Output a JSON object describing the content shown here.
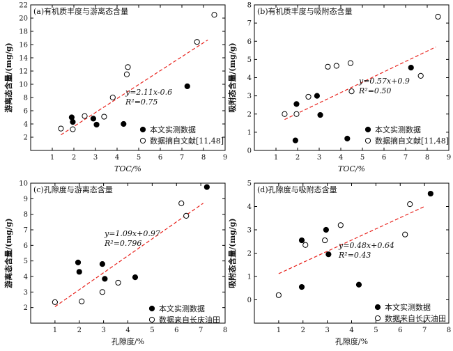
{
  "chart_data": [
    {
      "type": "scatter",
      "title": "(a)有机质丰度与游离态含量",
      "xlabel": "TOC/%",
      "ylabel": "游离态含量/(mg/g)",
      "xlim": [
        0,
        9
      ],
      "ylim": [
        0,
        22
      ],
      "xticks": [
        1,
        2,
        3,
        4,
        5,
        6,
        7,
        8,
        9
      ],
      "yticks": [
        2,
        4,
        6,
        8,
        10,
        12,
        14,
        16,
        18,
        20,
        22
      ],
      "series": [
        {
          "name": "本文实测数据",
          "marker": "filled",
          "x": [
            1.9,
            1.95,
            2.9,
            3.05,
            4.3,
            7.25
          ],
          "y": [
            5.0,
            4.3,
            4.8,
            3.9,
            4.0,
            9.7
          ]
        },
        {
          "name": "数据摘自文献[11,48]",
          "marker": "open",
          "x": [
            1.4,
            1.95,
            2.5,
            3.4,
            3.8,
            4.45,
            4.5,
            7.7,
            8.5
          ],
          "y": [
            3.3,
            3.2,
            5.2,
            5.1,
            8.0,
            11.5,
            12.6,
            16.4,
            20.5
          ]
        }
      ],
      "fit": {
        "slope": 2.11,
        "intercept": -0.6,
        "x_range": [
          1.4,
          8.2
        ]
      },
      "annotations": [
        "y=2.11x-0.6",
        "R²=0.75"
      ],
      "legend_position": "bottom-right"
    },
    {
      "type": "scatter",
      "title": "(b)有机质丰度与吸附态含量",
      "xlabel": "TOC/%",
      "ylabel": "吸附态含量/(mg/g)",
      "xlim": [
        0,
        9
      ],
      "ylim": [
        0,
        8
      ],
      "xticks": [
        1,
        2,
        3,
        4,
        5,
        6,
        7,
        8,
        9
      ],
      "yticks": [
        0,
        1,
        2,
        3,
        4,
        5,
        6,
        7,
        8
      ],
      "series": [
        {
          "name": "本文实测数据",
          "marker": "filled",
          "x": [
            1.9,
            1.95,
            2.9,
            3.05,
            4.3,
            7.25
          ],
          "y": [
            0.55,
            2.55,
            3.0,
            1.95,
            0.65,
            4.55
          ]
        },
        {
          "name": "数据摘自文献[11,48]",
          "marker": "open",
          "x": [
            1.4,
            1.95,
            2.5,
            3.4,
            3.8,
            4.45,
            4.5,
            7.7,
            8.5
          ],
          "y": [
            2.0,
            2.0,
            2.95,
            4.6,
            4.65,
            4.8,
            3.25,
            4.1,
            7.35
          ]
        }
      ],
      "fit": {
        "slope": 0.57,
        "intercept": 0.9,
        "x_range": [
          1.4,
          8.4
        ]
      },
      "annotations": [
        "y=0.57x+0.9",
        "R²=0.50"
      ],
      "legend_position": "bottom-right"
    },
    {
      "type": "scatter",
      "title": "(c)孔隙度与游离态含量",
      "xlabel": "孔隙度/%",
      "ylabel": "游离态含量/(mg/g)",
      "xlim": [
        0,
        8
      ],
      "ylim": [
        1,
        10
      ],
      "xticks": [
        1,
        2,
        3,
        4,
        5,
        6,
        7,
        8
      ],
      "yticks": [
        2,
        3,
        4,
        5,
        6,
        7,
        8,
        9,
        10
      ],
      "series": [
        {
          "name": "本文实测数据",
          "marker": "filled",
          "x": [
            1.95,
            2.0,
            2.95,
            3.05,
            4.3,
            7.25
          ],
          "y": [
            4.9,
            4.3,
            4.8,
            3.85,
            3.95,
            9.75
          ]
        },
        {
          "name": "数据来自长庆油田",
          "marker": "open",
          "x": [
            1.0,
            2.1,
            2.95,
            3.6,
            6.2,
            6.4
          ],
          "y": [
            2.35,
            2.4,
            3.0,
            3.6,
            8.7,
            7.9
          ]
        }
      ],
      "fit": {
        "slope": 1.09,
        "intercept": 0.97,
        "x_range": [
          1.0,
          7.1
        ]
      },
      "annotations": [
        "y=1.09x+0.97",
        "R²=0.796"
      ],
      "legend_position": "bottom-right"
    },
    {
      "type": "scatter",
      "title": "(d)孔隙度与吸附态含量",
      "xlabel": "孔隙度/%",
      "ylabel": "吸附态含量/(mg/g)",
      "xlim": [
        0,
        8
      ],
      "ylim": [
        -1,
        5
      ],
      "xticks": [
        1,
        2,
        3,
        4,
        5,
        6,
        7,
        8
      ],
      "yticks": [
        0,
        1,
        2,
        3,
        4,
        5
      ],
      "series": [
        {
          "name": "本文实测数据",
          "marker": "filled",
          "x": [
            1.95,
            1.95,
            2.95,
            3.05,
            4.3,
            7.25
          ],
          "y": [
            2.55,
            0.55,
            3.0,
            1.95,
            0.65,
            4.55
          ]
        },
        {
          "name": "数据来自长庆油田",
          "marker": "open",
          "x": [
            1.0,
            2.1,
            2.9,
            3.55,
            6.2,
            6.4
          ],
          "y": [
            0.2,
            2.35,
            2.55,
            3.2,
            2.8,
            4.1
          ]
        }
      ],
      "fit": {
        "slope": 0.48,
        "intercept": 0.64,
        "x_range": [
          1.0,
          7.0
        ]
      },
      "annotations": [
        "y=0.48x+0.64",
        "R²=0.43"
      ],
      "legend_position": "bottom-right"
    }
  ]
}
